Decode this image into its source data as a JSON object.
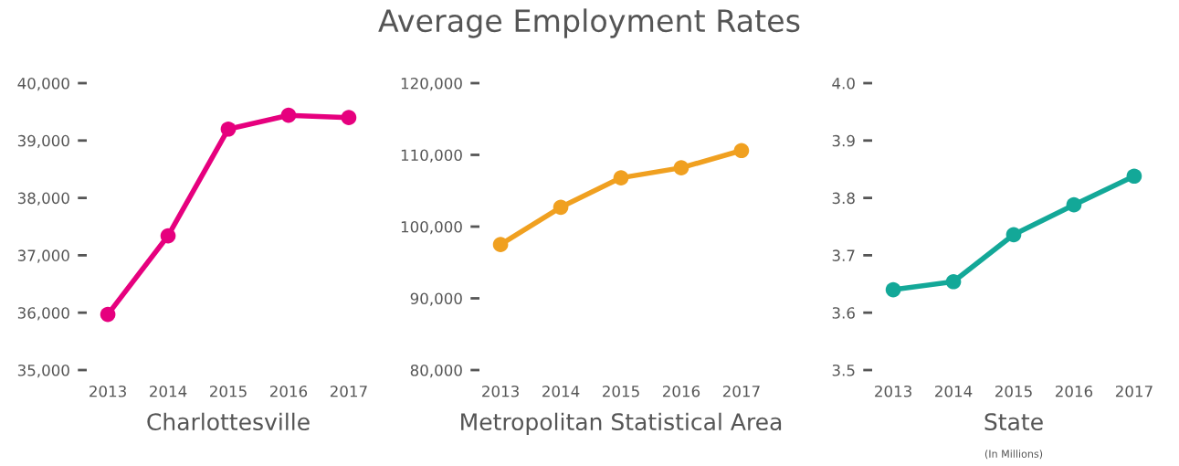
{
  "chart_data": [
    {
      "type": "line",
      "xlabel": "Charlottesville",
      "categories": [
        "2013",
        "2014",
        "2015",
        "2016",
        "2017"
      ],
      "series": [
        {
          "color": "#e6007e",
          "values": [
            35970,
            37340,
            39200,
            39440,
            39400
          ]
        }
      ],
      "ylim": [
        35000,
        40000
      ],
      "yticks": [
        {
          "value": 35000,
          "label": "35,000"
        },
        {
          "value": 36000,
          "label": "36,000"
        },
        {
          "value": 37000,
          "label": "37,000"
        },
        {
          "value": 38000,
          "label": "38,000"
        },
        {
          "value": 39000,
          "label": "39,000"
        },
        {
          "value": 40000,
          "label": "40,000"
        }
      ],
      "marker": "circle",
      "line_style": "solid",
      "grid": false,
      "legend": false
    },
    {
      "type": "line",
      "title": "Average Employment Rates",
      "xlabel": "Metropolitan Statistical Area",
      "categories": [
        "2013",
        "2014",
        "2015",
        "2016",
        "2017"
      ],
      "series": [
        {
          "color": "#f0a020",
          "values": [
            97500,
            102700,
            106800,
            108200,
            110600
          ]
        }
      ],
      "ylim": [
        80000,
        120000
      ],
      "yticks": [
        {
          "value": 80000,
          "label": "80,000"
        },
        {
          "value": 90000,
          "label": "90,000"
        },
        {
          "value": 100000,
          "label": "100,000"
        },
        {
          "value": 110000,
          "label": "110,000"
        },
        {
          "value": 120000,
          "label": "120,000"
        }
      ],
      "marker": "circle",
      "line_style": "solid",
      "grid": false,
      "legend": false
    },
    {
      "type": "line",
      "xlabel": "State",
      "annotations": [
        "(In Millions)"
      ],
      "categories": [
        "2013",
        "2014",
        "2015",
        "2016",
        "2017"
      ],
      "series": [
        {
          "color": "#13a898",
          "values": [
            3.64,
            3.654,
            3.736,
            3.788,
            3.838
          ]
        }
      ],
      "ylim": [
        3.5,
        4.0
      ],
      "yticks": [
        3.5,
        3.6,
        3.7,
        3.8,
        3.9,
        {
          "value": 4.0,
          "label": "4.0"
        }
      ],
      "marker": "circle",
      "line_style": "solid",
      "grid": false,
      "legend": false
    }
  ]
}
